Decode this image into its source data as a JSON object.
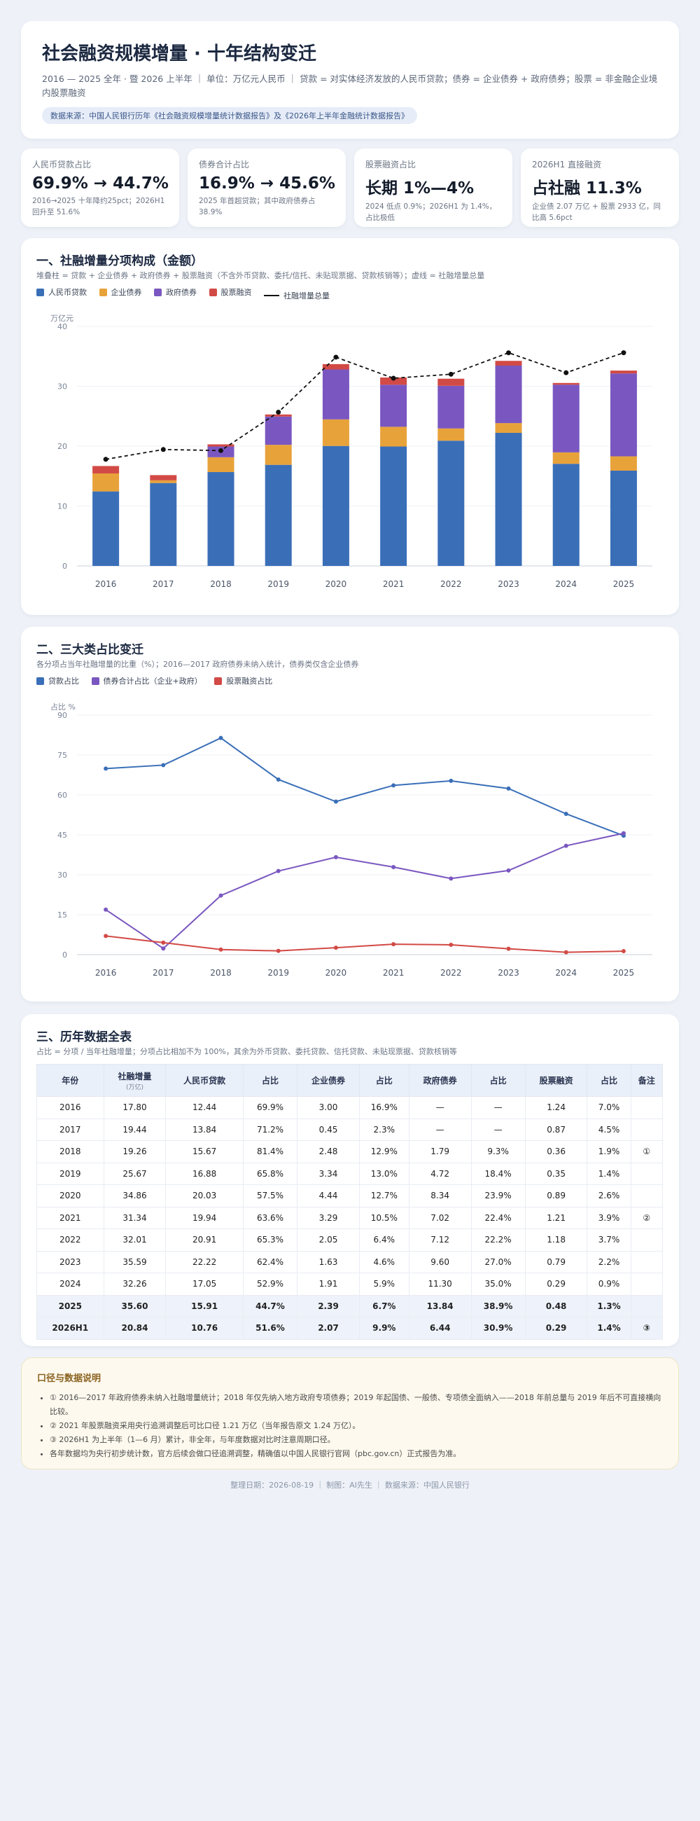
{
  "header": {
    "title": "社会融资规模增量 · 十年结构变迁",
    "subtitle": "2016 — 2025 全年 · 暨 2026 上半年 ｜ 单位：万亿元人民币 ｜ 贷款 = 对实体经济发放的人民币贷款；债券 = 企业债券 + 政府债券；股票 = 非金融企业境内股票融资",
    "source": "数据来源：中国人民银行历年《社会融资规模增量统计数据报告》及《2026年上半年金融统计数据报告》"
  },
  "kpis": [
    {
      "label": "人民币贷款占比",
      "value": "69.9% → 44.7%",
      "note": "2016→2025 十年降约25pct；2026H1 回升至 51.6%"
    },
    {
      "label": "债券合计占比",
      "value": "16.9% → 45.6%",
      "note": "2025 年首超贷款；其中政府债券占 38.9%"
    },
    {
      "label": "股票融资占比",
      "value": "长期 1%—4%",
      "note": "2024 低点 0.9%；2026H1 为 1.4%，占比极低"
    },
    {
      "label": "2026H1 直接融资",
      "value": "占社融 11.3%",
      "note": "企业债 2.07 万亿 + 股票 2933 亿，同比高 5.6pct"
    }
  ],
  "section1": {
    "title": "一、社融增量分项构成（金额）",
    "subtitle": "堆叠柱 = 贷款 + 企业债券 + 政府债券 + 股票融资（不含外币贷款、委托/信托、未贴现票据、贷款核销等）；虚线 = 社融增量总量",
    "legend": [
      "人民币贷款",
      "企业债券",
      "政府债券",
      "股票融资",
      "社融增量总量"
    ],
    "yunit": "万亿元"
  },
  "section2": {
    "title": "二、三大类占比变迁",
    "subtitle": "各分项占当年社融增量的比重（%）；2016—2017 政府债券未纳入统计，债券类仅含企业债券",
    "legend": [
      "贷款占比",
      "债券合计占比（企业+政府）",
      "股票融资占比"
    ],
    "yunit": "占比 %"
  },
  "section3": {
    "title": "三、历年数据全表",
    "subtitle": "占比 = 分项 / 当年社融增量；分项占比相加不为 100%，其余为外币贷款、委托贷款、信托贷款、未贴现票据、贷款核销等",
    "headers": [
      "年份",
      "社融增量",
      "人民币贷款",
      "占比",
      "企业债券",
      "占比",
      "政府债券",
      "占比",
      "股票融资",
      "占比",
      "备注"
    ],
    "header_unit": "(万亿)",
    "rows": [
      [
        "2016",
        "17.80",
        "12.44",
        "69.9%",
        "3.00",
        "16.9%",
        "—",
        "—",
        "1.24",
        "7.0%",
        ""
      ],
      [
        "2017",
        "19.44",
        "13.84",
        "71.2%",
        "0.45",
        "2.3%",
        "—",
        "—",
        "0.87",
        "4.5%",
        ""
      ],
      [
        "2018",
        "19.26",
        "15.67",
        "81.4%",
        "2.48",
        "12.9%",
        "1.79",
        "9.3%",
        "0.36",
        "1.9%",
        "①"
      ],
      [
        "2019",
        "25.67",
        "16.88",
        "65.8%",
        "3.34",
        "13.0%",
        "4.72",
        "18.4%",
        "0.35",
        "1.4%",
        ""
      ],
      [
        "2020",
        "34.86",
        "20.03",
        "57.5%",
        "4.44",
        "12.7%",
        "8.34",
        "23.9%",
        "0.89",
        "2.6%",
        ""
      ],
      [
        "2021",
        "31.34",
        "19.94",
        "63.6%",
        "3.29",
        "10.5%",
        "7.02",
        "22.4%",
        "1.21",
        "3.9%",
        "②"
      ],
      [
        "2022",
        "32.01",
        "20.91",
        "65.3%",
        "2.05",
        "6.4%",
        "7.12",
        "22.2%",
        "1.18",
        "3.7%",
        ""
      ],
      [
        "2023",
        "35.59",
        "22.22",
        "62.4%",
        "1.63",
        "4.6%",
        "9.60",
        "27.0%",
        "0.79",
        "2.2%",
        ""
      ],
      [
        "2024",
        "32.26",
        "17.05",
        "52.9%",
        "1.91",
        "5.9%",
        "11.30",
        "35.0%",
        "0.29",
        "0.9%",
        ""
      ],
      [
        "2025",
        "35.60",
        "15.91",
        "44.7%",
        "2.39",
        "6.7%",
        "13.84",
        "38.9%",
        "0.48",
        "1.3%",
        ""
      ],
      [
        "2026H1",
        "20.84",
        "10.76",
        "51.6%",
        "2.07",
        "9.9%",
        "6.44",
        "30.9%",
        "0.29",
        "1.4%",
        "③"
      ]
    ]
  },
  "notes": {
    "title": "口径与数据说明",
    "items": [
      "① 2016—2017 年政府债券未纳入社融增量统计；2018 年仅先纳入地方政府专项债券；2019 年起国债、一般债、专项债全面纳入——2018 年前总量与 2019 年后不可直接横向比较。",
      "② 2021 年股票融资采用央行追溯调整后可比口径 1.21 万亿（当年报告原文 1.24 万亿）。",
      "③ 2026H1 为上半年（1—6 月）累计，非全年，与年度数据对比时注意周期口径。",
      "各年数据均为央行初步统计数，官方后续会做口径追溯调整，精确值以中国人民银行官网（pbc.gov.cn）正式报告为准。"
    ]
  },
  "footer": "整理日期：2026-08-19 ｜ 制图：AI先生 ｜ 数据来源：中国人民银行",
  "colors": {
    "loan": "#3a6fb8",
    "corp": "#e8a23a",
    "gov": "#7a57c0",
    "stock": "#d24a45",
    "total": "#111111"
  },
  "chart_data": [
    {
      "type": "bar",
      "stacked": true,
      "categories": [
        "2016",
        "2017",
        "2018",
        "2019",
        "2020",
        "2021",
        "2022",
        "2023",
        "2024",
        "2025"
      ],
      "series": [
        {
          "name": "人民币贷款",
          "values": [
            12.44,
            13.84,
            15.67,
            16.88,
            20.03,
            19.94,
            20.91,
            22.22,
            17.05,
            15.91
          ]
        },
        {
          "name": "企业债券",
          "values": [
            3.0,
            0.45,
            2.48,
            3.34,
            4.44,
            3.29,
            2.05,
            1.63,
            1.91,
            2.39
          ]
        },
        {
          "name": "政府债券",
          "values": [
            0,
            0,
            1.79,
            4.72,
            8.34,
            7.02,
            7.12,
            9.6,
            11.3,
            13.84
          ]
        },
        {
          "name": "股票融资",
          "values": [
            1.24,
            0.87,
            0.36,
            0.35,
            0.89,
            1.21,
            1.18,
            0.79,
            0.29,
            0.48
          ]
        }
      ],
      "line": {
        "name": "社融增量总量",
        "values": [
          17.8,
          19.44,
          19.26,
          25.67,
          34.86,
          31.34,
          32.01,
          35.59,
          32.26,
          35.6
        ]
      },
      "yticks": [
        0,
        10,
        20,
        30,
        40
      ],
      "ylim": [
        0,
        40
      ],
      "ylabel": "万亿元"
    },
    {
      "type": "line",
      "categories": [
        "2016",
        "2017",
        "2018",
        "2019",
        "2020",
        "2021",
        "2022",
        "2023",
        "2024",
        "2025"
      ],
      "series": [
        {
          "name": "贷款占比",
          "values": [
            69.9,
            71.2,
            81.4,
            65.8,
            57.5,
            63.6,
            65.3,
            62.4,
            52.9,
            44.7
          ]
        },
        {
          "name": "债券合计占比（企业+政府）",
          "values": [
            16.9,
            2.3,
            22.2,
            31.4,
            36.6,
            32.9,
            28.6,
            31.6,
            40.9,
            45.6
          ]
        },
        {
          "name": "股票融资占比",
          "values": [
            7.0,
            4.5,
            1.9,
            1.4,
            2.6,
            3.9,
            3.7,
            2.2,
            0.9,
            1.3
          ]
        }
      ],
      "yticks": [
        0,
        15,
        30,
        45,
        60,
        75,
        90
      ],
      "ylim": [
        0,
        90
      ],
      "ylabel": "占比 %"
    }
  ]
}
